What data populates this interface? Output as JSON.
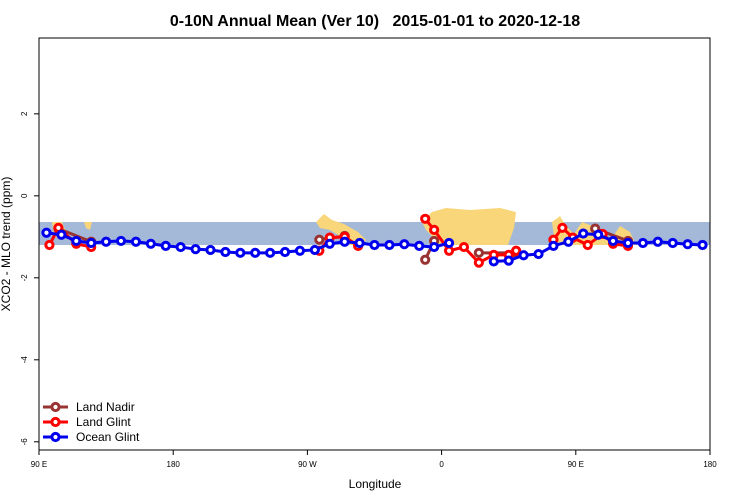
{
  "chart_data": {
    "type": "line",
    "title": "0-10N Annual Mean (Ver 10)   2015-01-01 to 2020-12-18",
    "x_label": "Longitude",
    "y_label": "XCO2 - MLO trend (ppm)",
    "xlim": [
      90,
      540
    ],
    "xticks": [
      {
        "value": 90,
        "label": "90 E"
      },
      {
        "value": 180,
        "label": "180"
      },
      {
        "value": 270,
        "label": "90 W"
      },
      {
        "value": 360,
        "label": "0"
      },
      {
        "value": 450,
        "label": "90 E"
      },
      {
        "value": 540,
        "label": "180"
      }
    ],
    "ylim": [
      -6.2,
      3.85
    ],
    "yticks": [
      -6,
      -4,
      -2,
      0,
      2
    ],
    "legend": "bottom-left",
    "series": [
      {
        "name": "Land Nadir",
        "color": "#993333",
        "x": [
          103,
          125,
          200,
          278,
          295,
          330,
          349,
          355,
          370,
          385,
          410,
          440,
          463,
          485
        ],
        "values": [
          -0.8,
          -1.12,
          null,
          -1.07,
          -0.98,
          null,
          -1.56,
          -1.1,
          null,
          -1.39,
          -1.39,
          null,
          -0.8,
          -1.1
        ]
      },
      {
        "name": "Land Glint",
        "color": "#ff0000",
        "x": [
          97,
          103,
          115,
          125,
          200,
          278,
          285,
          295,
          304,
          330,
          349,
          355,
          365,
          375,
          385,
          395,
          405,
          410,
          422,
          435,
          441,
          448,
          458,
          468,
          475,
          485
        ],
        "values": [
          -1.2,
          -0.78,
          -1.17,
          -1.25,
          null,
          -1.34,
          -1.02,
          -1.0,
          -1.22,
          null,
          -0.56,
          -0.83,
          -1.34,
          -1.25,
          -1.63,
          -1.44,
          -1.44,
          -1.34,
          null,
          -1.07,
          -0.78,
          -1.02,
          -1.2,
          -0.93,
          -1.17,
          -1.22
        ]
      },
      {
        "name": "Ocean Glint",
        "color": "#0000ee",
        "x": [
          95,
          105,
          115,
          125,
          135,
          145,
          155,
          165,
          175,
          185,
          195,
          205,
          215,
          225,
          235,
          245,
          255,
          265,
          275,
          285,
          295,
          305,
          315,
          325,
          335,
          345,
          355,
          365,
          375,
          385,
          395,
          405,
          415,
          425,
          435,
          445,
          455,
          465,
          475,
          485,
          495,
          505,
          515,
          525,
          535
        ],
        "values": [
          -0.9,
          -0.95,
          -1.1,
          -1.15,
          -1.12,
          -1.1,
          -1.12,
          -1.17,
          -1.22,
          -1.25,
          -1.3,
          -1.32,
          -1.37,
          -1.39,
          -1.39,
          -1.39,
          -1.37,
          -1.34,
          -1.32,
          -1.17,
          -1.12,
          -1.15,
          -1.2,
          -1.2,
          -1.18,
          -1.22,
          -1.25,
          -1.15,
          null,
          null,
          -1.6,
          -1.58,
          -1.45,
          -1.42,
          -1.22,
          -1.12,
          -0.92,
          -0.95,
          -1.1,
          -1.15,
          -1.15,
          -1.12,
          -1.15,
          -1.18,
          -1.2
        ]
      }
    ]
  }
}
